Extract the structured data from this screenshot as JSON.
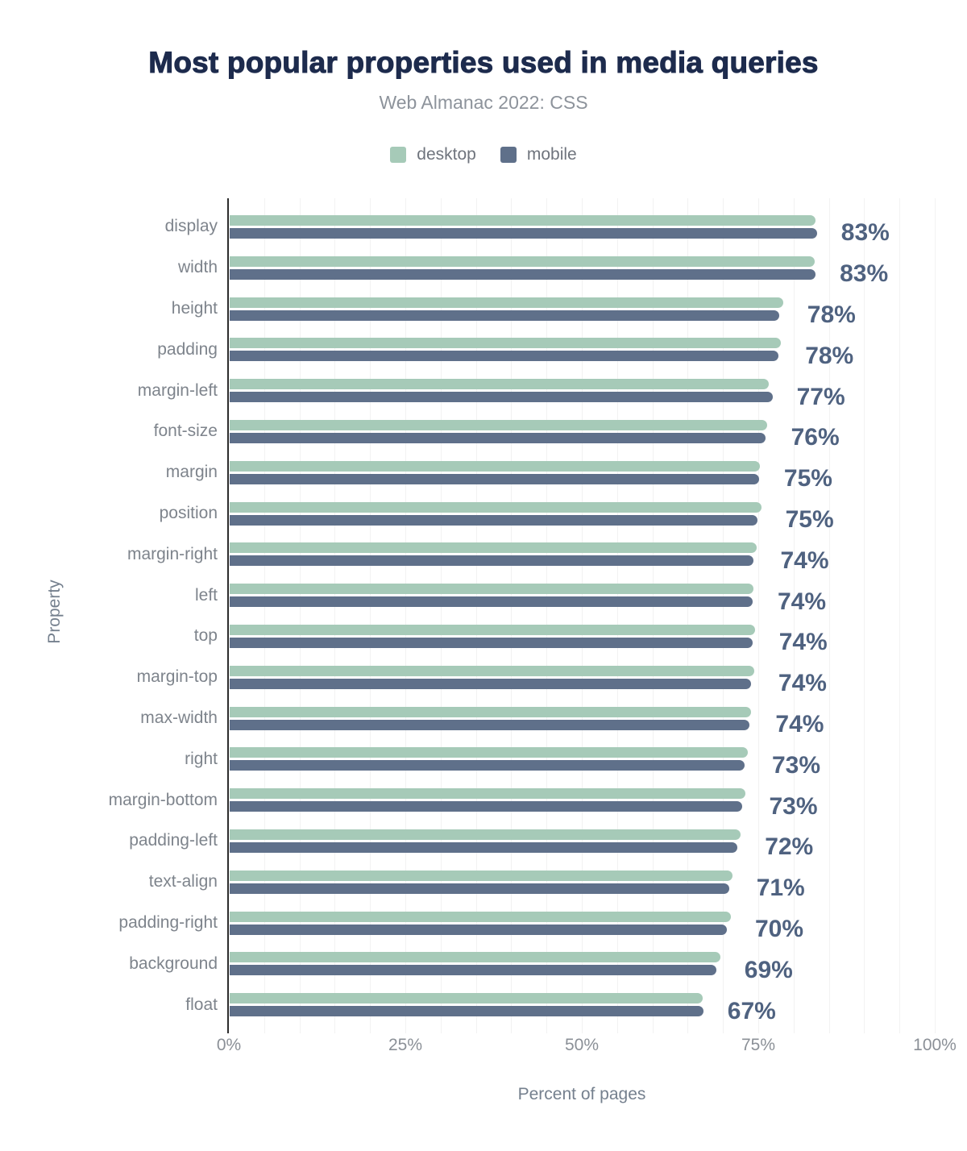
{
  "header": {
    "title": "Most popular properties used in media queries",
    "subtitle": "Web Almanac 2022: CSS"
  },
  "legend": {
    "items": [
      {
        "label": "desktop",
        "color": "#a6cab8"
      },
      {
        "label": "mobile",
        "color": "#5f708a"
      }
    ]
  },
  "colors": {
    "desktop_bar": "#a6cab8",
    "mobile_bar": "#5f708a",
    "title_text": "#1d2b4d",
    "subtitle_text": "#8d939b",
    "value_label_text": "#4f6280",
    "category_text": "#7e848c",
    "tick_text": "#8b9097",
    "axis_title_text": "#75808e",
    "legend_text": "#6f747d",
    "axis_line": "#2d2d2d",
    "gridline": "rgba(0,0,0,0.05)",
    "background": "#ffffff"
  },
  "chart_data": {
    "type": "bar",
    "orientation": "horizontal",
    "title": "Most popular properties used in media queries",
    "subtitle": "Web Almanac 2022: CSS",
    "xlabel": "Percent of pages",
    "ylabel": "Property",
    "xlim": [
      0,
      100
    ],
    "grid": "vertical minor gridlines every 5%, faint",
    "legend_position": "top",
    "bar_style": "paired bars, rounded right ends, desktop above mobile",
    "xticks": {
      "labels": [
        "0%",
        "25%",
        "50%",
        "75%",
        "100%"
      ],
      "values": [
        0,
        25,
        50,
        75,
        100
      ]
    },
    "categories": [
      "display",
      "width",
      "height",
      "padding",
      "margin-left",
      "font-size",
      "margin",
      "position",
      "margin-right",
      "left",
      "top",
      "margin-top",
      "max-width",
      "right",
      "margin-bottom",
      "padding-left",
      "text-align",
      "padding-right",
      "background",
      "float"
    ],
    "series": [
      {
        "name": "desktop",
        "values": [
          83.0,
          82.9,
          78.4,
          78.1,
          76.4,
          76.1,
          75.1,
          75.3,
          74.6,
          74.2,
          74.4,
          74.3,
          73.9,
          73.4,
          73.0,
          72.4,
          71.2,
          71.0,
          69.5,
          67.0
        ]
      },
      {
        "name": "mobile",
        "values": [
          83.2,
          83.0,
          77.9,
          77.7,
          76.9,
          75.9,
          75.0,
          74.8,
          74.2,
          74.1,
          74.1,
          73.8,
          73.6,
          72.9,
          72.6,
          71.9,
          70.8,
          70.4,
          69.0,
          67.1
        ]
      }
    ],
    "value_labels": [
      "83%",
      "83%",
      "78%",
      "78%",
      "77%",
      "76%",
      "75%",
      "75%",
      "74%",
      "74%",
      "74%",
      "74%",
      "74%",
      "73%",
      "73%",
      "72%",
      "71%",
      "70%",
      "69%",
      "67%"
    ]
  }
}
